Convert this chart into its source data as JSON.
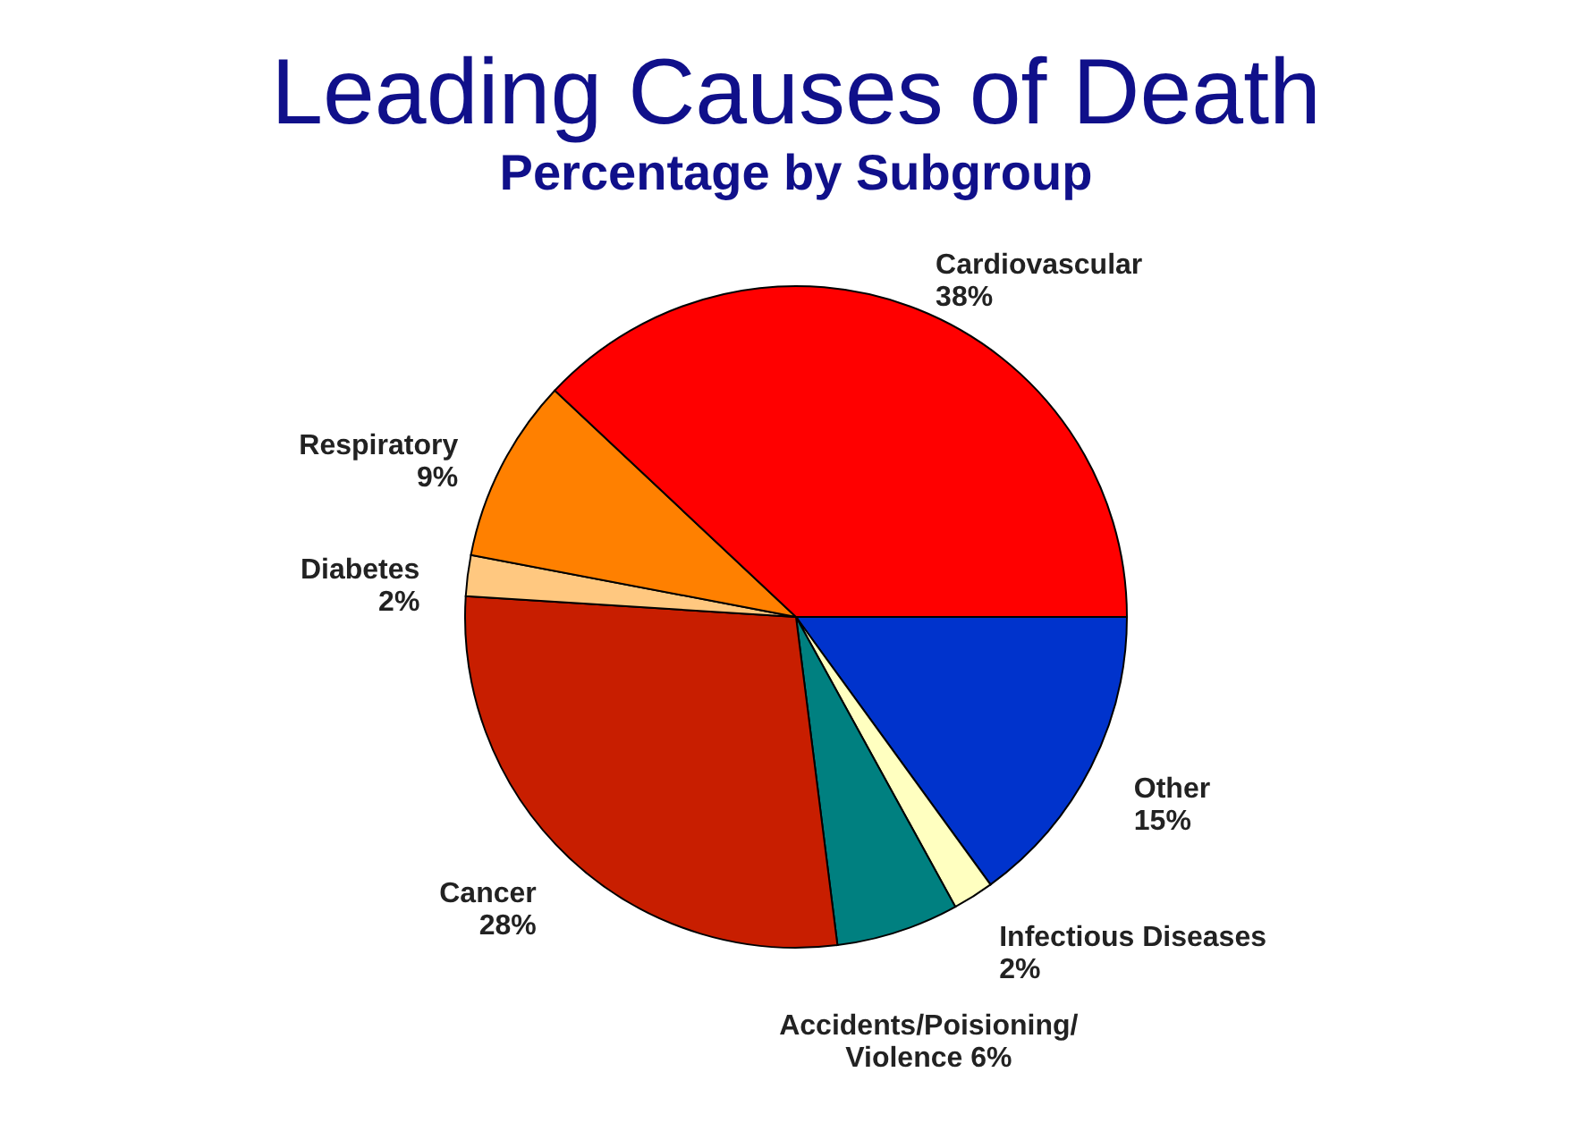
{
  "chart_data": {
    "type": "pie",
    "title": "Leading Causes of Death",
    "subtitle": "Percentage by Subgroup",
    "categories": [
      "Other",
      "Infectious Diseases",
      "Accidents/Poisioning/Violence",
      "Cancer",
      "Diabetes",
      "Respiratory",
      "Cardiovascular"
    ],
    "values": [
      15,
      2,
      6,
      28,
      2,
      9,
      38
    ],
    "value_labels": [
      "15%",
      "2%",
      "6%",
      "28%",
      "2%",
      "9%",
      "38%"
    ],
    "colors": [
      "#0033cc",
      "#ffffc0",
      "#008080",
      "#c81e00",
      "#ffc880",
      "#ff8000",
      "#ff0000"
    ],
    "legend": false
  }
}
